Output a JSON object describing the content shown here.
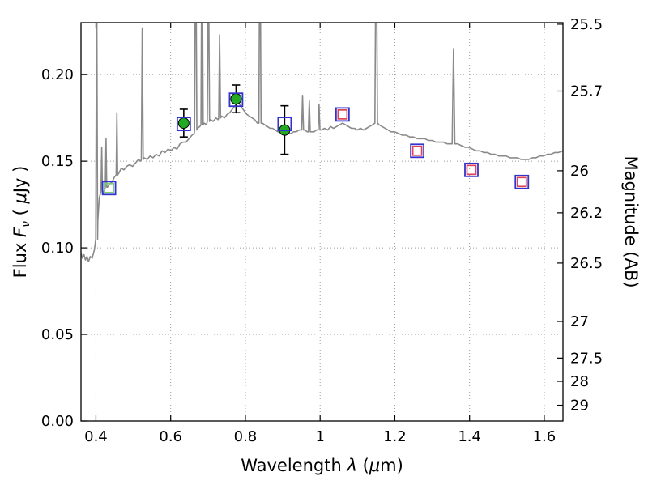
{
  "chart_data": {
    "type": "line",
    "subtype": "galaxy-sed-spectrum-with-photometry",
    "title": "",
    "xlabel": "Wavelength λ (μm)",
    "ylabel_left": "Flux Fν ( μJy )",
    "ylabel_right": "Magnitude (AB)",
    "xlim": [
      0.36,
      1.65
    ],
    "ylim": [
      0.0,
      0.23
    ],
    "grid": "dotted",
    "legend": "none",
    "x_ticks": [
      {
        "value": 0.4,
        "label": "0.4"
      },
      {
        "value": 0.6,
        "label": "0.6"
      },
      {
        "value": 0.8,
        "label": "0.8"
      },
      {
        "value": 1.0,
        "label": "1"
      },
      {
        "value": 1.2,
        "label": "1.2"
      },
      {
        "value": 1.4,
        "label": "1.4"
      },
      {
        "value": 1.6,
        "label": "1.6"
      }
    ],
    "y_ticks_left": [
      {
        "value": 0.0,
        "label": "0.00"
      },
      {
        "value": 0.05,
        "label": "0.05"
      },
      {
        "value": 0.1,
        "label": "0.10"
      },
      {
        "value": 0.15,
        "label": "0.15"
      },
      {
        "value": 0.2,
        "label": "0.20"
      }
    ],
    "y_ticks_right": [
      {
        "flux": 0.2291,
        "label": "25.5"
      },
      {
        "flux": 0.1905,
        "label": "25.7"
      },
      {
        "flux": 0.1445,
        "label": "26"
      },
      {
        "flux": 0.1202,
        "label": "26.2"
      },
      {
        "flux": 0.0912,
        "label": "26.5"
      },
      {
        "flux": 0.0575,
        "label": "27"
      },
      {
        "flux": 0.0363,
        "label": "27.5"
      },
      {
        "flux": 0.0229,
        "label": "28"
      },
      {
        "flux": 0.0091,
        "label": "29"
      }
    ],
    "label_parts": {
      "xlabel": [
        {
          "t": "Wavelength  "
        },
        {
          "t": "λ",
          "italic": true
        },
        {
          "t": " ("
        },
        {
          "t": "μ",
          "italic": true
        },
        {
          "t": "m)"
        }
      ],
      "ylabel_left": [
        {
          "t": "Flux  "
        },
        {
          "t": "F",
          "italic": true
        },
        {
          "t": "ν",
          "italic": true,
          "sub": true
        },
        {
          "t": "  ( "
        },
        {
          "t": "μ",
          "italic": true
        },
        {
          "t": "Jy )"
        }
      ],
      "ylabel_right": [
        {
          "t": "Magnitude (AB)"
        }
      ]
    },
    "colors": {
      "spectrum": "#8a8a8a",
      "grid": "#9a9a9a",
      "axis": "#000000",
      "errorbar": "#000000",
      "circle": "#22aa22",
      "circle_edge": "#000000",
      "square": "#3333cc",
      "inner_square_red": "#dd4455",
      "inner_square_green": "#77cc77"
    },
    "spectrum": {
      "continuum": [
        [
          0.36,
          0.097
        ],
        [
          0.364,
          0.094
        ],
        [
          0.368,
          0.096
        ],
        [
          0.372,
          0.093
        ],
        [
          0.376,
          0.095
        ],
        [
          0.38,
          0.092
        ],
        [
          0.385,
          0.095
        ],
        [
          0.39,
          0.094
        ],
        [
          0.396,
          0.099
        ],
        [
          0.405,
          0.116
        ],
        [
          0.409,
          0.129
        ],
        [
          0.413,
          0.132
        ],
        [
          0.419,
          0.131
        ],
        [
          0.424,
          0.134
        ],
        [
          0.431,
          0.135
        ],
        [
          0.437,
          0.137
        ],
        [
          0.443,
          0.138
        ],
        [
          0.45,
          0.141
        ],
        [
          0.461,
          0.143
        ],
        [
          0.468,
          0.146
        ],
        [
          0.475,
          0.145
        ],
        [
          0.482,
          0.147
        ],
        [
          0.49,
          0.148
        ],
        [
          0.498,
          0.147
        ],
        [
          0.506,
          0.149
        ],
        [
          0.514,
          0.151
        ],
        [
          0.52,
          0.15
        ],
        [
          0.529,
          0.152
        ],
        [
          0.537,
          0.151
        ],
        [
          0.545,
          0.153
        ],
        [
          0.553,
          0.152
        ],
        [
          0.561,
          0.154
        ],
        [
          0.569,
          0.153
        ],
        [
          0.577,
          0.156
        ],
        [
          0.585,
          0.155
        ],
        [
          0.593,
          0.157
        ],
        [
          0.601,
          0.156
        ],
        [
          0.609,
          0.158
        ],
        [
          0.617,
          0.157
        ],
        [
          0.625,
          0.16
        ],
        [
          0.633,
          0.161
        ],
        [
          0.641,
          0.161
        ],
        [
          0.649,
          0.163
        ],
        [
          0.657,
          0.165
        ],
        [
          0.663,
          0.166
        ],
        [
          0.672,
          0.169
        ],
        [
          0.678,
          0.17
        ],
        [
          0.69,
          0.172
        ],
        [
          0.696,
          0.171
        ],
        [
          0.707,
          0.174
        ],
        [
          0.714,
          0.173
        ],
        [
          0.721,
          0.175
        ],
        [
          0.727,
          0.174
        ],
        [
          0.737,
          0.176
        ],
        [
          0.744,
          0.175
        ],
        [
          0.751,
          0.177
        ],
        [
          0.758,
          0.178
        ],
        [
          0.765,
          0.18
        ],
        [
          0.772,
          0.182
        ],
        [
          0.778,
          0.184
        ],
        [
          0.784,
          0.183
        ],
        [
          0.79,
          0.181
        ],
        [
          0.797,
          0.179
        ],
        [
          0.804,
          0.177
        ],
        [
          0.811,
          0.176
        ],
        [
          0.818,
          0.175
        ],
        [
          0.825,
          0.174
        ],
        [
          0.832,
          0.172
        ],
        [
          0.845,
          0.172
        ],
        [
          0.852,
          0.171
        ],
        [
          0.859,
          0.17
        ],
        [
          0.866,
          0.169
        ],
        [
          0.873,
          0.169
        ],
        [
          0.88,
          0.168
        ],
        [
          0.887,
          0.167
        ],
        [
          0.894,
          0.167
        ],
        [
          0.901,
          0.166
        ],
        [
          0.908,
          0.165
        ],
        [
          0.915,
          0.166
        ],
        [
          0.922,
          0.166
        ],
        [
          0.929,
          0.167
        ],
        [
          0.936,
          0.167
        ],
        [
          0.943,
          0.168
        ],
        [
          0.959,
          0.168
        ],
        [
          0.965,
          0.167
        ],
        [
          0.977,
          0.167
        ],
        [
          0.984,
          0.167
        ],
        [
          0.99,
          0.168
        ],
        [
          1.004,
          0.168
        ],
        [
          1.012,
          0.169
        ],
        [
          1.02,
          0.168
        ],
        [
          1.028,
          0.17
        ],
        [
          1.036,
          0.169
        ],
        [
          1.044,
          0.17
        ],
        [
          1.052,
          0.171
        ],
        [
          1.06,
          0.172
        ],
        [
          1.068,
          0.171
        ],
        [
          1.076,
          0.17
        ],
        [
          1.084,
          0.169
        ],
        [
          1.092,
          0.169
        ],
        [
          1.1,
          0.168
        ],
        [
          1.108,
          0.169
        ],
        [
          1.116,
          0.168
        ],
        [
          1.124,
          0.169
        ],
        [
          1.132,
          0.17
        ],
        [
          1.14,
          0.171
        ],
        [
          1.158,
          0.171
        ],
        [
          1.166,
          0.17
        ],
        [
          1.174,
          0.169
        ],
        [
          1.182,
          0.168
        ],
        [
          1.19,
          0.167
        ],
        [
          1.2,
          0.167
        ],
        [
          1.21,
          0.166
        ],
        [
          1.22,
          0.165
        ],
        [
          1.23,
          0.165
        ],
        [
          1.24,
          0.164
        ],
        [
          1.25,
          0.164
        ],
        [
          1.26,
          0.163
        ],
        [
          1.27,
          0.163
        ],
        [
          1.28,
          0.163
        ],
        [
          1.29,
          0.162
        ],
        [
          1.3,
          0.162
        ],
        [
          1.31,
          0.161
        ],
        [
          1.32,
          0.161
        ],
        [
          1.33,
          0.161
        ],
        [
          1.34,
          0.16
        ],
        [
          1.348,
          0.16
        ],
        [
          1.368,
          0.16
        ],
        [
          1.378,
          0.159
        ],
        [
          1.388,
          0.158
        ],
        [
          1.398,
          0.158
        ],
        [
          1.408,
          0.157
        ],
        [
          1.418,
          0.156
        ],
        [
          1.428,
          0.156
        ],
        [
          1.438,
          0.155
        ],
        [
          1.448,
          0.155
        ],
        [
          1.458,
          0.154
        ],
        [
          1.468,
          0.154
        ],
        [
          1.478,
          0.153
        ],
        [
          1.488,
          0.153
        ],
        [
          1.498,
          0.153
        ],
        [
          1.508,
          0.152
        ],
        [
          1.518,
          0.152
        ],
        [
          1.528,
          0.152
        ],
        [
          1.538,
          0.151
        ],
        [
          1.548,
          0.151
        ],
        [
          1.558,
          0.151
        ],
        [
          1.568,
          0.152
        ],
        [
          1.578,
          0.152
        ],
        [
          1.588,
          0.153
        ],
        [
          1.598,
          0.153
        ],
        [
          1.608,
          0.154
        ],
        [
          1.618,
          0.154
        ],
        [
          1.628,
          0.155
        ],
        [
          1.638,
          0.155
        ],
        [
          1.65,
          0.156
        ]
      ],
      "emission_lines": [
        {
          "w": 0.402,
          "peak": 0.26,
          "base": 0.105,
          "hw": 0.0025
        },
        {
          "w": 0.4155,
          "peak": 0.158,
          "base": 0.133,
          "hw": 0.002
        },
        {
          "w": 0.427,
          "peak": 0.163,
          "base": 0.135,
          "hw": 0.002
        },
        {
          "w": 0.456,
          "peak": 0.178,
          "base": 0.142,
          "hw": 0.002
        },
        {
          "w": 0.524,
          "peak": 0.227,
          "base": 0.151,
          "hw": 0.0025
        },
        {
          "w": 0.667,
          "peak": 0.3,
          "base": 0.168,
          "hw": 0.003
        },
        {
          "w": 0.684,
          "peak": 0.3,
          "base": 0.171,
          "hw": 0.003
        },
        {
          "w": 0.701,
          "peak": 0.27,
          "base": 0.173,
          "hw": 0.003
        },
        {
          "w": 0.731,
          "peak": 0.223,
          "base": 0.175,
          "hw": 0.0025
        },
        {
          "w": 0.839,
          "peak": 0.3,
          "base": 0.172,
          "hw": 0.003
        },
        {
          "w": 0.953,
          "peak": 0.188,
          "base": 0.168,
          "hw": 0.0025
        },
        {
          "w": 0.971,
          "peak": 0.185,
          "base": 0.167,
          "hw": 0.0025
        },
        {
          "w": 0.997,
          "peak": 0.183,
          "base": 0.168,
          "hw": 0.0025
        },
        {
          "w": 1.15,
          "peak": 0.3,
          "base": 0.172,
          "hw": 0.0035
        },
        {
          "w": 1.357,
          "peak": 0.215,
          "base": 0.16,
          "hw": 0.0035
        }
      ]
    },
    "photometry": {
      "green_circles": [
        {
          "x": 0.635,
          "flux": 0.172,
          "err": 0.008
        },
        {
          "x": 0.775,
          "flux": 0.186,
          "err": 0.008
        },
        {
          "x": 0.905,
          "flux": 0.168,
          "err": 0.014
        }
      ],
      "blue_squares": [
        {
          "x": 0.435,
          "flux": 0.1345
        },
        {
          "x": 0.635,
          "flux": 0.1715
        },
        {
          "x": 0.775,
          "flux": 0.1855
        },
        {
          "x": 0.905,
          "flux": 0.1715
        },
        {
          "x": 1.06,
          "flux": 0.177
        },
        {
          "x": 1.26,
          "flux": 0.156
        },
        {
          "x": 1.405,
          "flux": 0.145
        },
        {
          "x": 1.54,
          "flux": 0.138
        }
      ],
      "inner_squares": [
        {
          "x": 0.435,
          "flux": 0.1345,
          "color_key": "inner_square_green"
        },
        {
          "x": 1.06,
          "flux": 0.177,
          "color_key": "inner_square_red"
        },
        {
          "x": 1.26,
          "flux": 0.156,
          "color_key": "inner_square_red"
        },
        {
          "x": 1.405,
          "flux": 0.145,
          "color_key": "inner_square_red"
        },
        {
          "x": 1.54,
          "flux": 0.138,
          "color_key": "inner_square_red"
        }
      ]
    }
  }
}
